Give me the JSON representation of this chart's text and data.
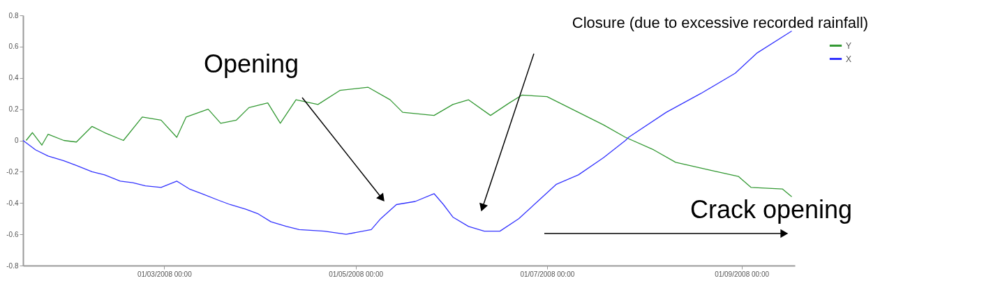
{
  "chart_data": {
    "type": "line",
    "xlim": [
      "2008-01-16",
      "2008-09-18"
    ],
    "xticks": [
      {
        "value": "2008-03-01",
        "label": "01/03/2008 00:00"
      },
      {
        "value": "2008-05-01",
        "label": "01/05/2008 00:00"
      },
      {
        "value": "2008-07-01",
        "label": "01/07/2008 00:00"
      },
      {
        "value": "2008-09-01",
        "label": "01/09/2008 00:00"
      }
    ],
    "ylim": [
      -0.8,
      0.8
    ],
    "yticks": [
      -0.8,
      -0.6,
      -0.4,
      -0.2,
      0,
      0.2,
      0.4,
      0.6,
      0.8
    ],
    "legend": "top right",
    "series": [
      {
        "name": "Y",
        "color": "#339933",
        "x": [
          "2008-01-17",
          "2008-01-19",
          "2008-01-22",
          "2008-01-24",
          "2008-01-29",
          "2008-02-02",
          "2008-02-07",
          "2008-02-11",
          "2008-02-17",
          "2008-02-23",
          "2008-02-29",
          "2008-03-05",
          "2008-03-08",
          "2008-03-15",
          "2008-03-19",
          "2008-03-24",
          "2008-03-28",
          "2008-04-03",
          "2008-04-07",
          "2008-04-12",
          "2008-04-19",
          "2008-04-26",
          "2008-05-05",
          "2008-05-12",
          "2008-05-16",
          "2008-05-26",
          "2008-06-01",
          "2008-06-06",
          "2008-06-13",
          "2008-06-19",
          "2008-06-23",
          "2008-07-01",
          "2008-07-11",
          "2008-07-19",
          "2008-07-26",
          "2008-08-04",
          "2008-08-11",
          "2008-08-22",
          "2008-08-31",
          "2008-09-04",
          "2008-09-14",
          "2008-09-17"
        ],
        "values": [
          0,
          0.05,
          -0.03,
          0.04,
          0.0,
          -0.01,
          0.09,
          0.05,
          0.0,
          0.15,
          0.13,
          0.02,
          0.15,
          0.2,
          0.11,
          0.13,
          0.21,
          0.24,
          0.11,
          0.26,
          0.23,
          0.32,
          0.34,
          0.26,
          0.18,
          0.16,
          0.23,
          0.26,
          0.16,
          0.24,
          0.29,
          0.28,
          0.18,
          0.1,
          0.02,
          -0.06,
          -0.14,
          -0.19,
          -0.23,
          -0.3,
          -0.31,
          -0.36
        ]
      },
      {
        "name": "X",
        "color": "#3333ff",
        "x": [
          "2008-01-16",
          "2008-01-20",
          "2008-01-24",
          "2008-01-29",
          "2008-02-02",
          "2008-02-07",
          "2008-02-11",
          "2008-02-16",
          "2008-02-20",
          "2008-02-24",
          "2008-02-29",
          "2008-03-05",
          "2008-03-09",
          "2008-03-13",
          "2008-03-18",
          "2008-03-22",
          "2008-03-27",
          "2008-03-31",
          "2008-04-04",
          "2008-04-09",
          "2008-04-13",
          "2008-04-21",
          "2008-04-28",
          "2008-05-06",
          "2008-05-09",
          "2008-05-14",
          "2008-05-20",
          "2008-05-26",
          "2008-05-29",
          "2008-06-01",
          "2008-06-06",
          "2008-06-11",
          "2008-06-16",
          "2008-06-22",
          "2008-06-28",
          "2008-07-04",
          "2008-07-11",
          "2008-07-19",
          "2008-07-26",
          "2008-07-27",
          "2008-08-08",
          "2008-08-19",
          "2008-08-30",
          "2008-09-06",
          "2008-09-17"
        ],
        "values": [
          0,
          -0.06,
          -0.1,
          -0.13,
          -0.16,
          -0.2,
          -0.22,
          -0.26,
          -0.27,
          -0.29,
          -0.3,
          -0.26,
          -0.31,
          -0.34,
          -0.38,
          -0.41,
          -0.44,
          -0.47,
          -0.52,
          -0.55,
          -0.57,
          -0.58,
          -0.6,
          -0.57,
          -0.5,
          -0.41,
          -0.39,
          -0.34,
          -0.41,
          -0.49,
          -0.55,
          -0.58,
          -0.58,
          -0.5,
          -0.39,
          -0.28,
          -0.22,
          -0.11,
          0.0,
          0.02,
          0.18,
          0.3,
          0.43,
          0.56,
          0.7
        ]
      }
    ],
    "annotations": [
      "Opening",
      "Closure (due to excessive recorded rainfall)",
      "Crack opening"
    ]
  }
}
